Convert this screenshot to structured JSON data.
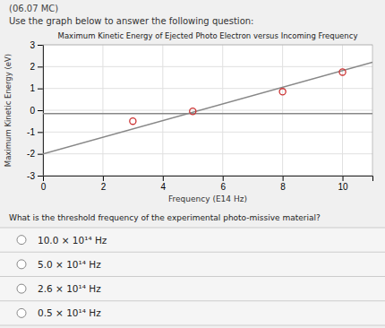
{
  "header": "(06.07 MC)",
  "subheader": "Use the graph below to answer the following question:",
  "chart_data": {
    "type": "line",
    "title": "Maximum Kinetic Energy of Ejected Photo Electron versus Incoming Frequency",
    "x_label": "Frequency (E14 Hz)",
    "y_label": "Maximum Kinetic Energy (eV)",
    "xlim": [
      0,
      11
    ],
    "ylim": [
      -3,
      3
    ],
    "xticks": [
      0,
      2,
      4,
      6,
      8,
      10
    ],
    "yticks": [
      -3,
      -2,
      -1,
      0,
      1,
      2,
      3
    ],
    "grid": true,
    "series": [
      {
        "type": "line",
        "color": "#888888",
        "x": [
          0,
          11
        ],
        "values": [
          -2.0,
          2.2
        ]
      },
      {
        "type": "line",
        "color": "#888888",
        "x": [
          0,
          11
        ],
        "values": [
          -0.15,
          -0.15
        ]
      },
      {
        "type": "scatter",
        "color": "#cc3333",
        "marker": "circle",
        "x": [
          3,
          5,
          8,
          10
        ],
        "values": [
          -0.5,
          -0.05,
          0.85,
          1.75
        ]
      }
    ]
  },
  "question": "What is the threshold frequency of the experimental photo-missive material?",
  "options": [
    "10.0 × 10¹⁴ Hz",
    "5.0 × 10¹⁴ Hz",
    "2.6 × 10¹⁴ Hz",
    "0.5 × 10¹⁴ Hz"
  ]
}
